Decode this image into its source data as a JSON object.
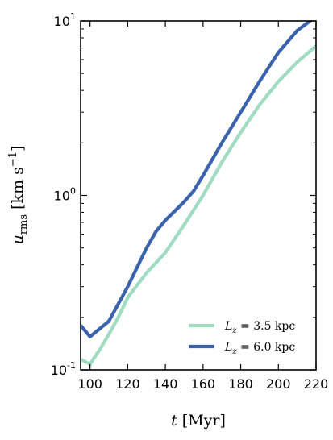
{
  "chart_data": {
    "type": "line",
    "xlabel": {
      "var": "t",
      "unit": "[Myr]"
    },
    "ylabel": {
      "var": "u",
      "sub": "rms",
      "unit_pre": "[km s",
      "unit_exp": "−1",
      "unit_post": "]"
    },
    "xlim": [
      95,
      220
    ],
    "ylim": [
      0.1,
      10
    ],
    "yscale": "log",
    "x_ticks": [
      {
        "value": 100,
        "label": "100"
      },
      {
        "value": 120,
        "label": "120"
      },
      {
        "value": 140,
        "label": "140"
      },
      {
        "value": 160,
        "label": "160"
      },
      {
        "value": 180,
        "label": "180"
      },
      {
        "value": 200,
        "label": "200"
      },
      {
        "value": 220,
        "label": "220"
      }
    ],
    "y_ticks": [
      {
        "value": 0.1,
        "base": "10",
        "exp": "-1"
      },
      {
        "value": 1,
        "base": "10",
        "exp": "0"
      },
      {
        "value": 10,
        "base": "10",
        "exp": "1"
      }
    ],
    "legend_position": "lower-right",
    "series": [
      {
        "name": "L_z = 3.5 kpc",
        "legend_var": "L",
        "legend_sub": "z",
        "legend_rest": " = 3.5 kpc",
        "color": "#9fdcc0",
        "x": [
          95,
          100,
          105,
          110,
          115,
          120,
          130,
          140,
          150,
          160,
          170,
          180,
          190,
          200,
          210,
          220
        ],
        "y": [
          0.115,
          0.108,
          0.13,
          0.16,
          0.2,
          0.26,
          0.36,
          0.47,
          0.68,
          1.0,
          1.55,
          2.3,
          3.3,
          4.5,
          5.8,
          7.2
        ]
      },
      {
        "name": "L_z = 6.0 kpc",
        "legend_var": "L",
        "legend_sub": "z",
        "legend_rest": " = 6.0 kpc",
        "color": "#3a62ad",
        "x": [
          95,
          100,
          110,
          120,
          130,
          135,
          140,
          150,
          155,
          160,
          170,
          180,
          190,
          200,
          210,
          220
        ],
        "y": [
          0.18,
          0.155,
          0.19,
          0.3,
          0.5,
          0.62,
          0.72,
          0.92,
          1.06,
          1.3,
          2.0,
          3.0,
          4.5,
          6.6,
          8.8,
          10.6
        ]
      }
    ]
  }
}
